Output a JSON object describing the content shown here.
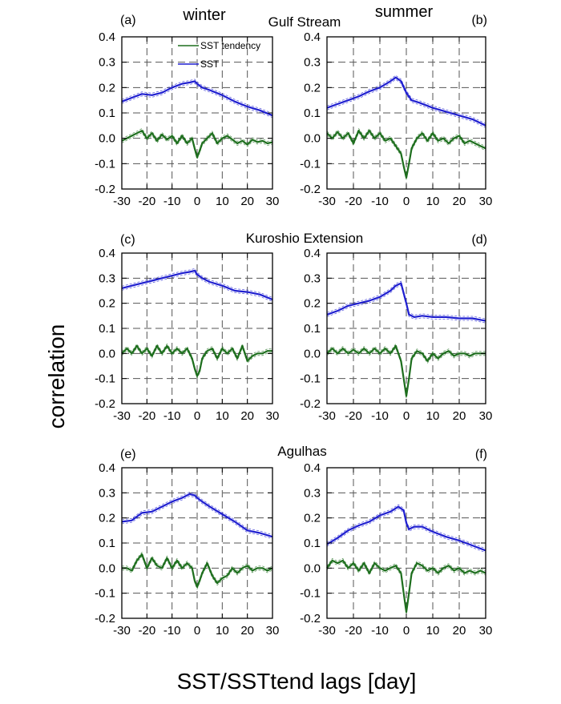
{
  "figure": {
    "column_titles": [
      "winter",
      "summer"
    ],
    "region_titles": [
      "Gulf Stream",
      "Kuroshio Extension",
      "Agulhas"
    ],
    "ylabel": "correlation",
    "xlabel": "SST/SSTtend lags [day]",
    "legend": [
      "SST tendency",
      "SST"
    ],
    "colors": {
      "sst": "#1f1fd0",
      "tend": "#1d6e1d",
      "grid": "#555555"
    }
  },
  "chart_data": [
    {
      "type": "line",
      "panel": "(a)",
      "region": "Gulf Stream",
      "season": "winter",
      "xlim": [
        -30,
        30
      ],
      "ylim": [
        -0.2,
        0.4
      ],
      "xticks": [
        -30,
        -20,
        -10,
        0,
        10,
        20,
        30
      ],
      "yticks": [
        0.4,
        0.3,
        0.2,
        0.1,
        0.0,
        -0.1,
        -0.2
      ],
      "ytick_labels": [
        "0.4",
        "0.3",
        "0.2",
        "0.1",
        "0.0",
        "-0.1",
        "-0.2"
      ],
      "series": [
        {
          "name": "SST",
          "x": [
            -30,
            -26,
            -22,
            -18,
            -14,
            -10,
            -6,
            -3,
            -1,
            0,
            2,
            5,
            10,
            15,
            20,
            25,
            30
          ],
          "y": [
            0.145,
            0.16,
            0.175,
            0.17,
            0.18,
            0.2,
            0.215,
            0.22,
            0.225,
            0.215,
            0.2,
            0.19,
            0.17,
            0.145,
            0.125,
            0.11,
            0.09
          ]
        },
        {
          "name": "SST tendency",
          "x": [
            -30,
            -28,
            -26,
            -24,
            -22,
            -20,
            -18,
            -16,
            -14,
            -12,
            -10,
            -8,
            -6,
            -4,
            -2,
            -1,
            0,
            1,
            2,
            4,
            6,
            8,
            10,
            12,
            14,
            16,
            18,
            20,
            22,
            24,
            26,
            28,
            30
          ],
          "y": [
            -0.01,
            0.0,
            0.01,
            0.02,
            0.03,
            0.0,
            0.02,
            -0.01,
            0.015,
            -0.005,
            0.01,
            -0.02,
            0.01,
            -0.02,
            0.0,
            -0.04,
            -0.075,
            -0.05,
            -0.02,
            0.0,
            0.02,
            -0.02,
            0.0,
            0.01,
            -0.005,
            -0.02,
            -0.01,
            -0.025,
            -0.005,
            -0.015,
            -0.01,
            -0.02,
            -0.015
          ]
        }
      ]
    },
    {
      "type": "line",
      "panel": "(b)",
      "region": "Gulf Stream",
      "season": "summer",
      "xlim": [
        -30,
        30
      ],
      "ylim": [
        -0.2,
        0.4
      ],
      "xticks": [
        -30,
        -20,
        -10,
        0,
        10,
        20,
        30
      ],
      "yticks": [
        0.4,
        0.3,
        0.2,
        0.1,
        0.0,
        -0.1,
        -0.2
      ],
      "ytick_labels": [
        "0.4",
        "0.3",
        "0.2",
        "0.1",
        "0.0",
        "-0.1",
        "-0.2"
      ],
      "series": [
        {
          "name": "SST",
          "x": [
            -30,
            -26,
            -22,
            -18,
            -14,
            -10,
            -6,
            -4,
            -2,
            0,
            2,
            5,
            10,
            15,
            20,
            25,
            30
          ],
          "y": [
            0.12,
            0.135,
            0.15,
            0.165,
            0.185,
            0.2,
            0.225,
            0.24,
            0.225,
            0.18,
            0.15,
            0.14,
            0.12,
            0.105,
            0.09,
            0.075,
            0.05
          ]
        },
        {
          "name": "SST tendency",
          "x": [
            -30,
            -28,
            -26,
            -24,
            -22,
            -20,
            -18,
            -16,
            -14,
            -12,
            -10,
            -8,
            -6,
            -4,
            -2,
            -1,
            0,
            1,
            2,
            4,
            6,
            8,
            10,
            12,
            14,
            16,
            18,
            20,
            22,
            24,
            26,
            28,
            30
          ],
          "y": [
            0.02,
            0.0,
            0.025,
            0.0,
            0.02,
            -0.02,
            0.03,
            0.0,
            0.03,
            0.0,
            0.02,
            -0.01,
            0.0,
            -0.03,
            -0.06,
            -0.11,
            -0.155,
            -0.1,
            -0.04,
            0.0,
            0.02,
            -0.01,
            0.02,
            -0.01,
            0.0,
            -0.02,
            0.0,
            0.01,
            -0.02,
            -0.01,
            -0.02,
            -0.03,
            -0.04
          ]
        }
      ]
    },
    {
      "type": "line",
      "panel": "(c)",
      "region": "Kuroshio Extension",
      "season": "winter",
      "xlim": [
        -30,
        30
      ],
      "ylim": [
        -0.2,
        0.4
      ],
      "xticks": [
        -30,
        -20,
        -10,
        0,
        10,
        20,
        30
      ],
      "yticks": [
        0.4,
        0.3,
        0.2,
        0.1,
        0.0,
        -0.1,
        -0.2
      ],
      "ytick_labels": [
        "0.4",
        "0.3",
        "0.2",
        "0.1",
        "0.0",
        "-0.1",
        "-0.2"
      ],
      "series": [
        {
          "name": "SST",
          "x": [
            -30,
            -26,
            -22,
            -18,
            -14,
            -10,
            -6,
            -3,
            -1,
            0,
            2,
            5,
            10,
            15,
            20,
            25,
            30
          ],
          "y": [
            0.26,
            0.27,
            0.28,
            0.29,
            0.3,
            0.31,
            0.32,
            0.325,
            0.33,
            0.315,
            0.3,
            0.285,
            0.27,
            0.25,
            0.245,
            0.235,
            0.215
          ]
        },
        {
          "name": "SST tendency",
          "x": [
            -30,
            -28,
            -26,
            -24,
            -22,
            -20,
            -18,
            -16,
            -14,
            -12,
            -10,
            -8,
            -6,
            -4,
            -2,
            -1,
            0,
            1,
            2,
            4,
            6,
            8,
            10,
            12,
            14,
            16,
            18,
            20,
            22,
            24,
            26,
            28,
            30
          ],
          "y": [
            0.0,
            0.02,
            0.0,
            0.03,
            0.0,
            0.02,
            -0.01,
            0.03,
            0.0,
            0.03,
            0.0,
            0.02,
            0.0,
            0.02,
            -0.02,
            -0.06,
            -0.09,
            -0.07,
            -0.02,
            0.01,
            0.02,
            -0.02,
            0.02,
            0.0,
            0.02,
            -0.02,
            0.03,
            -0.03,
            -0.01,
            0.0,
            0.0,
            0.01,
            0.01
          ]
        }
      ]
    },
    {
      "type": "line",
      "panel": "(d)",
      "region": "Kuroshio Extension",
      "season": "summer",
      "xlim": [
        -30,
        30
      ],
      "ylim": [
        -0.2,
        0.4
      ],
      "xticks": [
        -30,
        -20,
        -10,
        0,
        10,
        20,
        30
      ],
      "yticks": [
        0.4,
        0.3,
        0.2,
        0.1,
        0.0,
        -0.1,
        -0.2
      ],
      "ytick_labels": [
        "0.4",
        "0.3",
        "0.2",
        "0.1",
        "0.0",
        "-0.1",
        "-0.2"
      ],
      "series": [
        {
          "name": "SST",
          "x": [
            -30,
            -26,
            -22,
            -18,
            -14,
            -10,
            -6,
            -4,
            -2,
            0,
            1,
            3,
            6,
            10,
            15,
            20,
            25,
            30
          ],
          "y": [
            0.155,
            0.17,
            0.19,
            0.2,
            0.21,
            0.225,
            0.25,
            0.27,
            0.28,
            0.2,
            0.155,
            0.145,
            0.15,
            0.145,
            0.145,
            0.14,
            0.14,
            0.13
          ]
        },
        {
          "name": "SST tendency",
          "x": [
            -30,
            -28,
            -26,
            -24,
            -22,
            -20,
            -18,
            -16,
            -14,
            -12,
            -10,
            -8,
            -6,
            -4,
            -2,
            -1,
            0,
            1,
            2,
            4,
            6,
            8,
            10,
            12,
            14,
            16,
            18,
            20,
            22,
            24,
            26,
            28,
            30
          ],
          "y": [
            0.0,
            0.02,
            0.0,
            0.02,
            0.0,
            0.015,
            0.0,
            0.02,
            0.0,
            0.02,
            0.0,
            0.02,
            0.0,
            0.03,
            -0.03,
            -0.1,
            -0.17,
            -0.1,
            -0.02,
            0.01,
            0.0,
            -0.03,
            0.0,
            -0.02,
            0.0,
            0.01,
            -0.01,
            0.0,
            0.0,
            -0.01,
            0.0,
            0.0,
            0.0
          ]
        }
      ]
    },
    {
      "type": "line",
      "panel": "(e)",
      "region": "Agulhas",
      "season": "winter",
      "xlim": [
        -30,
        30
      ],
      "ylim": [
        -0.2,
        0.4
      ],
      "xticks": [
        -30,
        -20,
        -10,
        0,
        10,
        20,
        30
      ],
      "yticks": [
        0.4,
        0.3,
        0.2,
        0.1,
        0.0,
        -0.1,
        -0.2
      ],
      "ytick_labels": [
        "0.4",
        "0.3",
        "0.2",
        "0.1",
        "0.0",
        "-0.1",
        "-0.2"
      ],
      "series": [
        {
          "name": "SST",
          "x": [
            -30,
            -26,
            -22,
            -18,
            -14,
            -10,
            -6,
            -3,
            -1,
            0,
            2,
            5,
            10,
            15,
            20,
            25,
            30
          ],
          "y": [
            0.185,
            0.19,
            0.22,
            0.225,
            0.245,
            0.265,
            0.28,
            0.295,
            0.29,
            0.28,
            0.265,
            0.245,
            0.215,
            0.185,
            0.15,
            0.14,
            0.125
          ]
        },
        {
          "name": "SST tendency",
          "x": [
            -30,
            -28,
            -26,
            -24,
            -22,
            -20,
            -18,
            -16,
            -14,
            -12,
            -10,
            -8,
            -6,
            -4,
            -2,
            -1,
            0,
            1,
            2,
            4,
            6,
            8,
            10,
            12,
            14,
            16,
            18,
            20,
            22,
            24,
            26,
            28,
            30
          ],
          "y": [
            0.0,
            0.0,
            -0.01,
            0.03,
            0.055,
            0.0,
            0.04,
            0.01,
            0.0,
            0.04,
            0.0,
            0.03,
            0.0,
            0.02,
            0.0,
            -0.05,
            -0.075,
            -0.05,
            -0.02,
            0.02,
            -0.03,
            -0.06,
            -0.04,
            -0.03,
            0.0,
            -0.02,
            0.0,
            0.01,
            -0.01,
            0.0,
            0.0,
            -0.01,
            0.0
          ]
        }
      ]
    },
    {
      "type": "line",
      "panel": "(f)",
      "region": "Agulhas",
      "season": "summer",
      "xlim": [
        -30,
        30
      ],
      "ylim": [
        -0.2,
        0.4
      ],
      "xticks": [
        -30,
        -20,
        -10,
        0,
        10,
        20,
        30
      ],
      "yticks": [
        0.4,
        0.3,
        0.2,
        0.1,
        0.0,
        -0.1,
        -0.2
      ],
      "ytick_labels": [
        "0.4",
        "0.3",
        "0.2",
        "0.1",
        "0.0",
        "-0.1",
        "-0.2"
      ],
      "series": [
        {
          "name": "SST",
          "x": [
            -30,
            -26,
            -22,
            -18,
            -14,
            -10,
            -6,
            -3,
            -1,
            0,
            1,
            3,
            6,
            10,
            15,
            20,
            25,
            30
          ],
          "y": [
            0.095,
            0.12,
            0.15,
            0.17,
            0.185,
            0.21,
            0.225,
            0.245,
            0.23,
            0.18,
            0.155,
            0.165,
            0.165,
            0.145,
            0.125,
            0.11,
            0.09,
            0.07
          ]
        },
        {
          "name": "SST tendency",
          "x": [
            -30,
            -28,
            -26,
            -24,
            -22,
            -20,
            -18,
            -16,
            -14,
            -12,
            -10,
            -8,
            -6,
            -4,
            -2,
            -1,
            0,
            1,
            2,
            4,
            6,
            8,
            10,
            12,
            14,
            16,
            18,
            20,
            22,
            24,
            26,
            28,
            30
          ],
          "y": [
            0.0,
            0.03,
            0.02,
            0.03,
            0.0,
            0.02,
            -0.01,
            0.02,
            -0.02,
            0.02,
            0.0,
            -0.01,
            0.0,
            0.01,
            -0.02,
            -0.1,
            -0.175,
            -0.1,
            -0.02,
            0.02,
            0.01,
            -0.01,
            0.0,
            -0.02,
            0.0,
            0.01,
            -0.01,
            0.0,
            -0.02,
            -0.01,
            -0.02,
            -0.01,
            -0.02
          ]
        }
      ]
    }
  ]
}
